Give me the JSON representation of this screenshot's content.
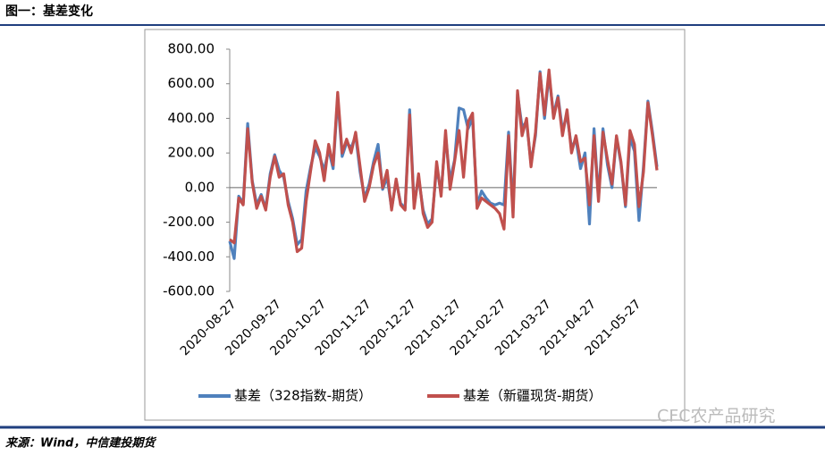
{
  "chart_data": {
    "type": "line",
    "title": "图一：基差变化",
    "source": "来源：Wind，中信建投期货",
    "watermark": "CFC农产品研究",
    "categories": [
      "2020-08-27",
      null,
      null,
      null,
      null,
      null,
      null,
      null,
      null,
      null,
      "2020-09-27",
      null,
      null,
      null,
      null,
      null,
      null,
      null,
      null,
      null,
      "2020-10-27",
      null,
      null,
      null,
      null,
      null,
      null,
      null,
      null,
      null,
      "2020-11-27",
      null,
      null,
      null,
      null,
      null,
      null,
      null,
      null,
      null,
      "2020-12-27",
      null,
      null,
      null,
      null,
      null,
      null,
      null,
      null,
      null,
      "2021-01-27",
      null,
      null,
      null,
      null,
      null,
      null,
      null,
      null,
      null,
      "2021-02-27",
      null,
      null,
      null,
      null,
      null,
      null,
      null,
      null,
      null,
      "2021-03-27",
      null,
      null,
      null,
      null,
      null,
      null,
      null,
      null,
      null,
      "2021-04-27",
      null,
      null,
      null,
      null,
      null,
      null,
      null,
      null,
      null,
      "2021-05-27",
      null,
      null,
      null,
      null,
      null
    ],
    "series": [
      {
        "name": "基差（328指数-期货）",
        "color": "#4f81bd",
        "values": [
          -310,
          -410,
          -50,
          -90,
          370,
          40,
          -100,
          -40,
          -120,
          80,
          190,
          100,
          60,
          -80,
          -180,
          -330,
          -300,
          -20,
          120,
          230,
          180,
          100,
          220,
          110,
          520,
          180,
          260,
          230,
          300,
          90,
          -60,
          20,
          150,
          250,
          -10,
          60,
          -120,
          40,
          -90,
          -120,
          450,
          -100,
          60,
          -130,
          -210,
          -180,
          120,
          -30,
          300,
          40,
          160,
          460,
          450,
          340,
          400,
          -100,
          -20,
          -60,
          -90,
          -100,
          -90,
          -100,
          320,
          -120,
          540,
          350,
          380,
          140,
          300,
          670,
          400,
          650,
          420,
          530,
          330,
          420,
          230,
          280,
          110,
          200,
          -210,
          340,
          -60,
          340,
          130,
          0,
          290,
          140,
          -110,
          290,
          210,
          -190,
          120,
          500,
          320,
          120
        ]
      },
      {
        "name": "基差（新疆现货-期货）",
        "color": "#c0504d",
        "values": [
          -300,
          -320,
          -60,
          -100,
          340,
          30,
          -120,
          -50,
          -130,
          60,
          180,
          60,
          80,
          -100,
          -200,
          -370,
          -350,
          -80,
          100,
          270,
          200,
          40,
          250,
          130,
          550,
          200,
          280,
          200,
          320,
          120,
          -80,
          0,
          130,
          200,
          0,
          100,
          -130,
          50,
          -100,
          -130,
          420,
          -120,
          80,
          -150,
          -230,
          -200,
          150,
          -50,
          330,
          -10,
          150,
          330,
          60,
          380,
          430,
          -120,
          -60,
          -80,
          -100,
          -120,
          -150,
          -240,
          300,
          -170,
          560,
          300,
          400,
          120,
          320,
          660,
          420,
          680,
          400,
          520,
          300,
          450,
          200,
          300,
          150,
          170,
          -100,
          300,
          -80,
          320,
          160,
          20,
          300,
          150,
          -100,
          330,
          250,
          -110,
          90,
          490,
          300,
          100
        ]
      }
    ],
    "ylim": [
      -600,
      800
    ],
    "yticks": [
      {
        "value": 800,
        "label": "800.00"
      },
      {
        "value": 600,
        "label": "600.00"
      },
      {
        "value": 400,
        "label": "400.00"
      },
      {
        "value": 200,
        "label": "200.00"
      },
      {
        "value": 0,
        "label": "0.00"
      },
      {
        "value": -200,
        "label": "-200.00"
      },
      {
        "value": -400,
        "label": "-400.00"
      },
      {
        "value": -600,
        "label": "-600.00"
      }
    ],
    "legend": "bottom"
  }
}
